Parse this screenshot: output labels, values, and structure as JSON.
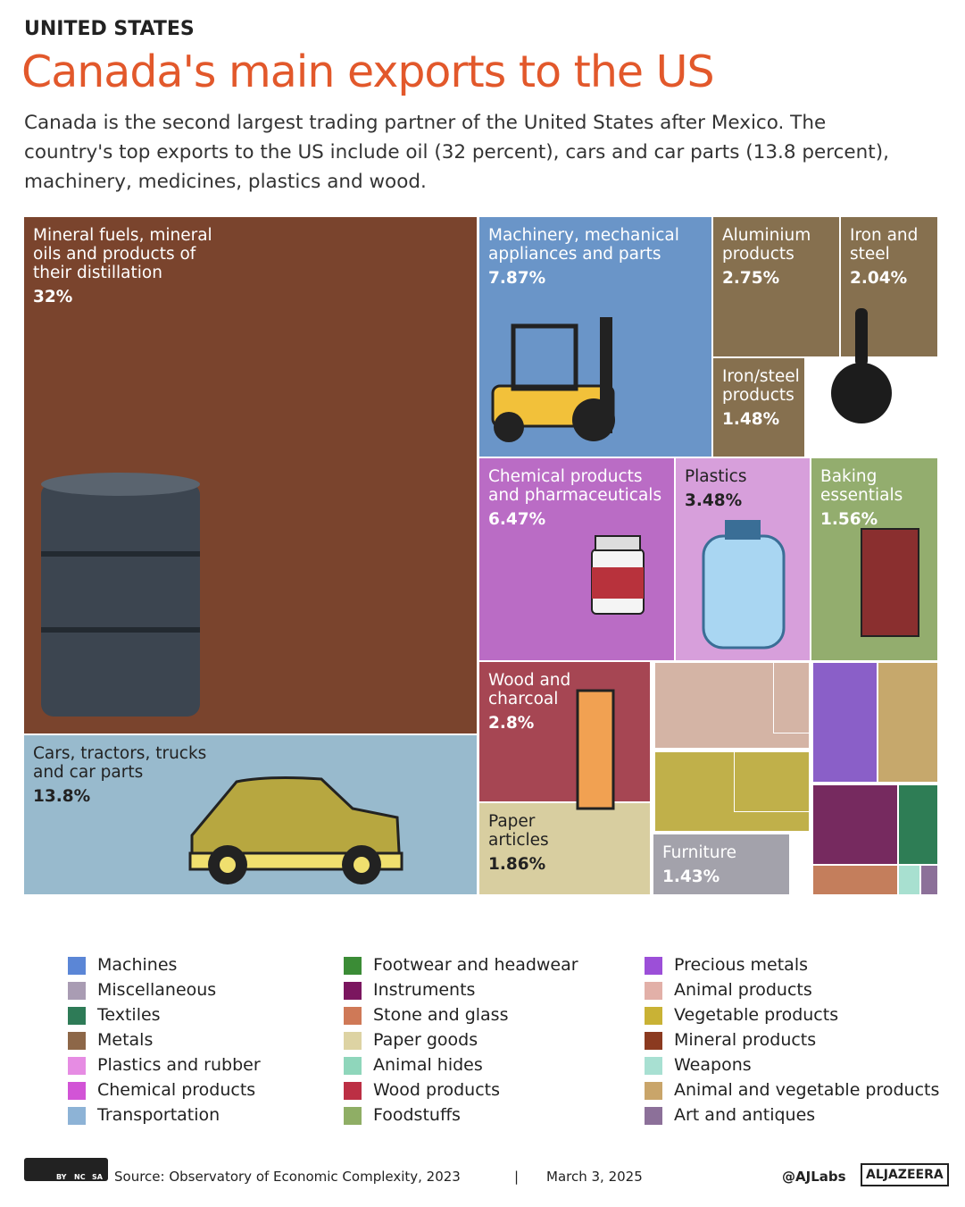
{
  "kicker": "UNITED STATES",
  "chart_data": {
    "type": "treemap",
    "title": "Canada's main exports to the US",
    "subtitle": "Canada is the second largest trading partner of the United States after Mexico. The country's top exports to the US include oil (32 percent), cars and car parts (13.8 percent), machinery, medicines, plastics and wood.",
    "categories": [
      "Mineral fuels, mineral oils and products of their distillation",
      "Cars, tractors, trucks and car parts",
      "Machinery, mechanical appliances and parts",
      "Aluminium products",
      "Iron and steel",
      "Iron/steel products",
      "Chemical products and pharmaceuticals",
      "Plastics",
      "Baking essentials",
      "Wood and charcoal",
      "Paper articles",
      "Furniture"
    ],
    "values": [
      32,
      13.8,
      7.87,
      2.75,
      2.04,
      1.48,
      6.47,
      3.48,
      1.56,
      2.8,
      1.86,
      1.43
    ],
    "value_labels": [
      "32%",
      "13.8%",
      "7.87%",
      "2.75%",
      "2.04%",
      "1.48%",
      "6.47%",
      "3.48%",
      "1.56%",
      "2.8%",
      "1.86%",
      "1.43%"
    ],
    "colors": [
      "#7a442d",
      "#98bacd",
      "#6a95c8",
      "#86704f",
      "#86704f",
      "#86704f",
      "#ba6cc5",
      "#d79fdb",
      "#93ad6e",
      "#a64653",
      "#d8cea0",
      "#a3a2ab"
    ],
    "legend": [
      {
        "name": "Machines",
        "color": "#5b86d6"
      },
      {
        "name": "Miscellaneous",
        "color": "#a99cb3"
      },
      {
        "name": "Textiles",
        "color": "#2e7b57"
      },
      {
        "name": "Metals",
        "color": "#8d6748"
      },
      {
        "name": "Plastics and rubber",
        "color": "#e68ce3"
      },
      {
        "name": "Chemical products",
        "color": "#d254d6"
      },
      {
        "name": "Transportation",
        "color": "#8db3d6"
      },
      {
        "name": "Footwear and headwear",
        "color": "#3b8c36"
      },
      {
        "name": "Instruments",
        "color": "#7b165f"
      },
      {
        "name": "Stone and glass",
        "color": "#cf7957"
      },
      {
        "name": "Paper goods",
        "color": "#ddd3a3"
      },
      {
        "name": "Animal hides",
        "color": "#8fd6bb"
      },
      {
        "name": "Wood products",
        "color": "#bc2f44"
      },
      {
        "name": "Foodstuffs",
        "color": "#8fae65"
      },
      {
        "name": "Precious metals",
        "color": "#9c4fd8"
      },
      {
        "name": "Animal products",
        "color": "#e2b0a8"
      },
      {
        "name": "Vegetable products",
        "color": "#c9b235"
      },
      {
        "name": "Mineral products",
        "color": "#8b3a20"
      },
      {
        "name": "Weapons",
        "color": "#a8e0d2"
      },
      {
        "name": "Animal and vegetable products",
        "color": "#c9a56a"
      },
      {
        "name": "Art and antiques",
        "color": "#8c7099"
      }
    ]
  },
  "footer": {
    "license": [
      "BY",
      "NC",
      "SA"
    ],
    "source": "Source:  Observatory of Economic Complexity, 2023",
    "separator": "|",
    "date": "March 3, 2025",
    "handle": "@AJLabs",
    "brand": "ALJAZEERA"
  }
}
